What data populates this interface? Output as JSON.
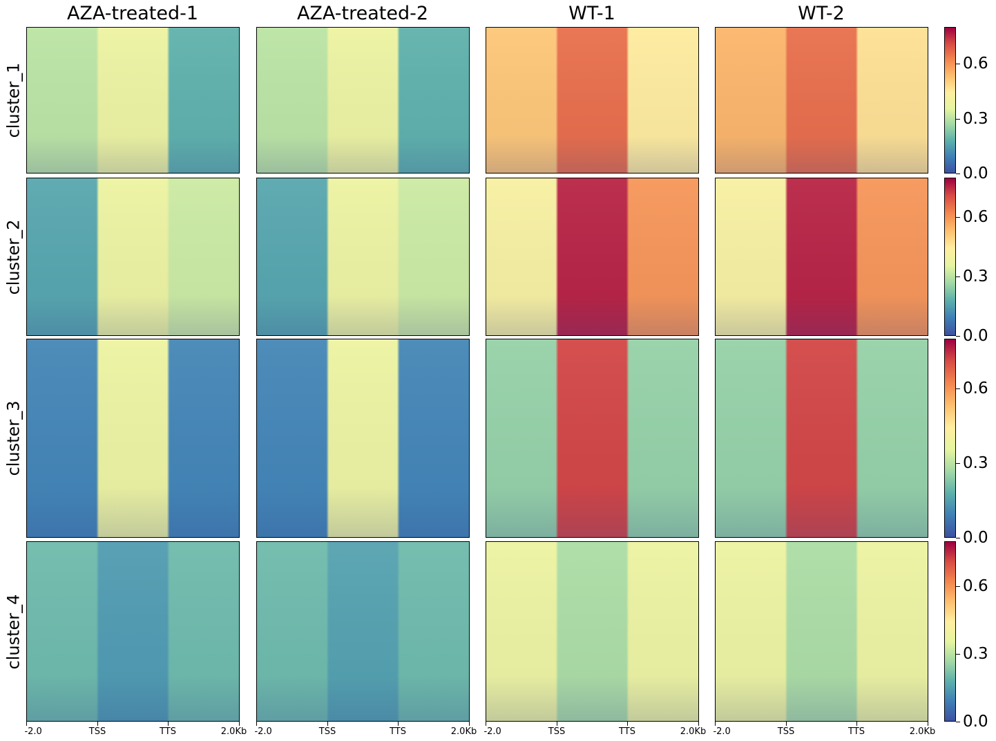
{
  "chart_data": {
    "type": "heatmap",
    "columns": [
      "AZA-treated-1",
      "AZA-treated-2",
      "WT-1",
      "WT-2"
    ],
    "rows": [
      "cluster_1",
      "cluster_2",
      "cluster_3",
      "cluster_4"
    ],
    "x_tick_labels": [
      "-2.0",
      "TSS",
      "TTS",
      "2.0Kb"
    ],
    "colorbar_ticks": [
      "0.0",
      "0.3",
      "0.6"
    ],
    "colorbar_range": [
      0.0,
      0.8
    ],
    "colormap": "Spectral_r",
    "colormap_stops": [
      "#3d52a1",
      "#3f7fb6",
      "#5db0ab",
      "#a2d9a5",
      "#e6f5a0",
      "#feeea0",
      "#fdbf6f",
      "#f4874f",
      "#d84c44",
      "#9e0142"
    ],
    "approx_values_flank_body_flank": {
      "AZA-treated-1": {
        "cluster_1": [
          0.3,
          0.38,
          0.18
        ],
        "cluster_2": [
          0.16,
          0.38,
          0.32
        ],
        "cluster_3": [
          0.1,
          0.38,
          0.1
        ],
        "cluster_4": [
          0.2,
          0.14,
          0.2
        ]
      },
      "AZA-treated-2": {
        "cluster_1": [
          0.3,
          0.38,
          0.18
        ],
        "cluster_2": [
          0.16,
          0.38,
          0.32
        ],
        "cluster_3": [
          0.1,
          0.38,
          0.1
        ],
        "cluster_4": [
          0.2,
          0.15,
          0.2
        ]
      },
      "WT-1": {
        "cluster_1": [
          0.52,
          0.66,
          0.45
        ],
        "cluster_2": [
          0.42,
          0.76,
          0.6
        ],
        "cluster_3": [
          0.25,
          0.72,
          0.25
        ],
        "cluster_4": [
          0.38,
          0.28,
          0.38
        ]
      },
      "WT-2": {
        "cluster_1": [
          0.55,
          0.66,
          0.47
        ],
        "cluster_2": [
          0.42,
          0.76,
          0.6
        ],
        "cluster_3": [
          0.25,
          0.72,
          0.25
        ],
        "cluster_4": [
          0.38,
          0.28,
          0.38
        ]
      }
    }
  }
}
